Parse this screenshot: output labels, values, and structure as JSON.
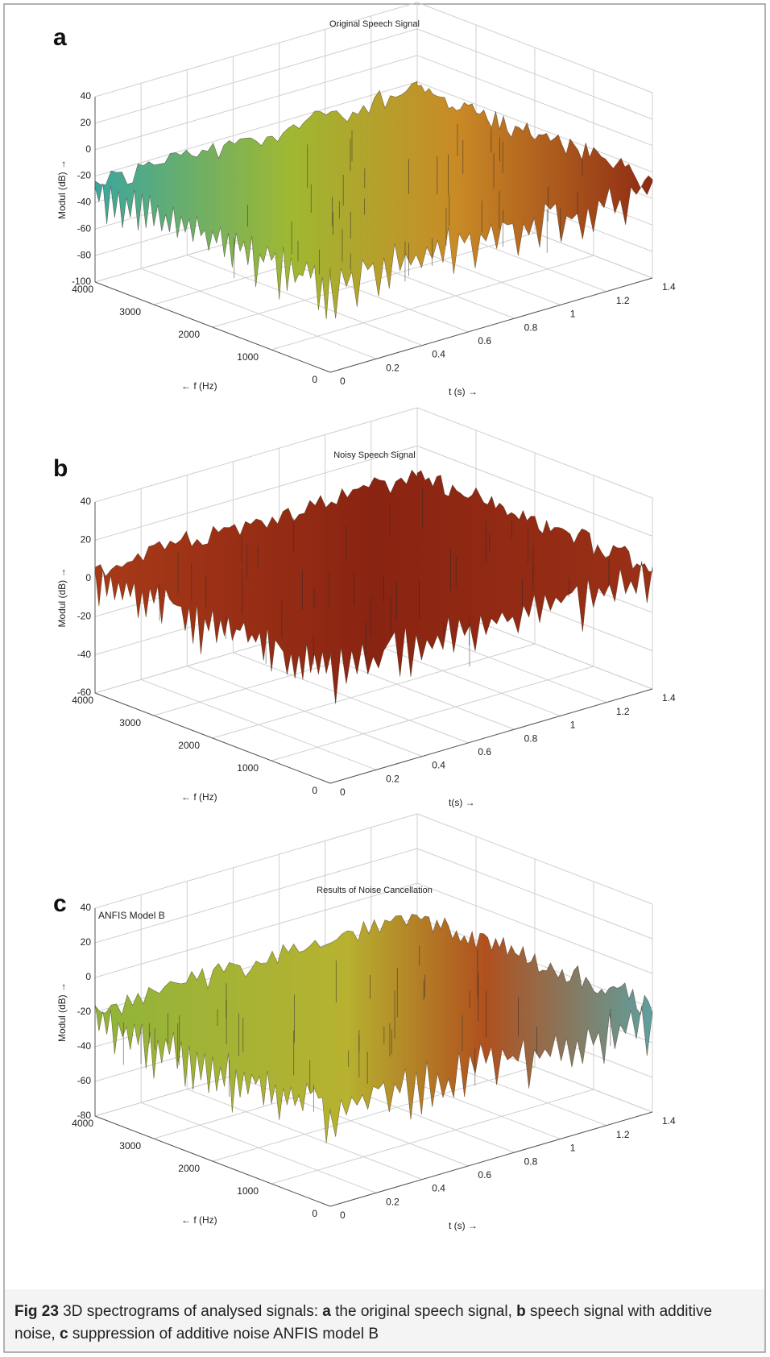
{
  "figure": {
    "panels": [
      {
        "label": "a",
        "title": "Original Speech Signal",
        "zticks": [
          40,
          20,
          0,
          -20,
          -40,
          -60,
          -80,
          -100
        ],
        "fticks": [
          4000,
          3000,
          2000,
          1000,
          0
        ],
        "tticks": [
          0,
          0.2,
          0.4,
          0.6,
          0.8,
          1,
          1.2,
          1.4
        ],
        "zlabel": "Modul (dB) →",
        "flabel": "← f (Hz)",
        "tlabel": "t (s) →"
      },
      {
        "label": "b",
        "title": "Noisy Speech Signal",
        "zticks": [
          40,
          20,
          0,
          -20,
          -40,
          -60
        ],
        "fticks": [
          4000,
          3000,
          2000,
          1000,
          0
        ],
        "tticks": [
          0,
          0.2,
          0.4,
          0.6,
          0.8,
          1,
          1.2,
          1.4
        ],
        "zlabel": "Modul (dB) →",
        "flabel": "← f (Hz)",
        "tlabel": "t(s)  →"
      },
      {
        "label": "c",
        "title": "Results of Noise Cancellation",
        "annotation": "ANFIS Model B",
        "zticks": [
          40,
          20,
          0,
          -20,
          -40,
          -60,
          -80
        ],
        "fticks": [
          4000,
          3000,
          2000,
          1000,
          0
        ],
        "tticks": [
          0,
          0.2,
          0.4,
          0.6,
          0.8,
          1,
          1.2,
          1.4
        ],
        "zlabel": "Modul (dB) →",
        "flabel": "← f (Hz)",
        "tlabel": "t (s) →"
      }
    ],
    "caption": {
      "label": "Fig 23",
      "parts": [
        " 3D spectrograms of analysed signals: ",
        "a",
        " the original speech signal, ",
        "b",
        " speech signal with additive noise, ",
        "c",
        " suppression of additive noise ANFIS model B"
      ]
    }
  }
}
